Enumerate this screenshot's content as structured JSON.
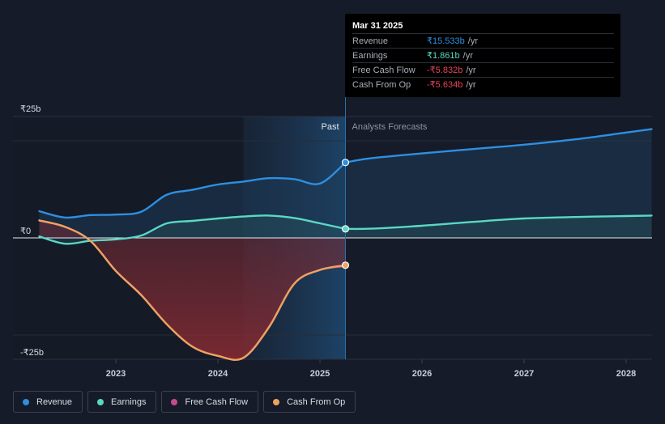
{
  "chart_data": {
    "type": "line",
    "currency_unit": "₹ billions",
    "y_ticks": [
      {
        "value": 25,
        "label": "₹25b"
      },
      {
        "value": 0,
        "label": "₹0"
      },
      {
        "value": -25,
        "label": "-₹25b"
      }
    ],
    "x_ticks": [
      {
        "value": 2023,
        "label": "2023"
      },
      {
        "value": 2024,
        "label": "2024"
      },
      {
        "value": 2025,
        "label": "2025"
      },
      {
        "value": 2026,
        "label": "2026"
      },
      {
        "value": 2027,
        "label": "2027"
      },
      {
        "value": 2028,
        "label": "2028"
      }
    ],
    "xlim": [
      2022.25,
      2028.25
    ],
    "ylim": [
      -25,
      25
    ],
    "past_label": "Past",
    "forecast_label": "Analysts Forecasts",
    "past_start": 2024.25,
    "past_end": 2025.25,
    "series": [
      {
        "name": "Revenue",
        "color": "#2e8fe0",
        "past": [
          [
            2022.25,
            5.5
          ],
          [
            2022.5,
            4.2
          ],
          [
            2022.75,
            4.7
          ],
          [
            2023.0,
            4.8
          ],
          [
            2023.25,
            5.4
          ],
          [
            2023.5,
            8.9
          ],
          [
            2023.75,
            9.9
          ],
          [
            2024.0,
            11.0
          ],
          [
            2024.25,
            11.6
          ],
          [
            2024.5,
            12.3
          ],
          [
            2024.75,
            12.1
          ],
          [
            2025.0,
            11.2
          ],
          [
            2025.25,
            15.533
          ]
        ],
        "forecast": [
          [
            2025.25,
            15.533
          ],
          [
            2025.5,
            16.4
          ],
          [
            2026.0,
            17.4
          ],
          [
            2026.5,
            18.3
          ],
          [
            2027.0,
            19.2
          ],
          [
            2027.5,
            20.3
          ],
          [
            2028.0,
            21.7
          ],
          [
            2028.25,
            22.4
          ]
        ]
      },
      {
        "name": "Earnings",
        "color": "#5ad8c4",
        "past": [
          [
            2022.25,
            0.3
          ],
          [
            2022.5,
            -1.2
          ],
          [
            2022.75,
            -0.6
          ],
          [
            2023.0,
            -0.3
          ],
          [
            2023.25,
            0.5
          ],
          [
            2023.5,
            3.0
          ],
          [
            2023.75,
            3.5
          ],
          [
            2024.0,
            4.0
          ],
          [
            2024.25,
            4.4
          ],
          [
            2024.5,
            4.6
          ],
          [
            2024.75,
            4.1
          ],
          [
            2025.0,
            3.0
          ],
          [
            2025.25,
            1.861
          ]
        ],
        "forecast": [
          [
            2025.25,
            1.861
          ],
          [
            2025.5,
            1.9
          ],
          [
            2026.0,
            2.5
          ],
          [
            2026.5,
            3.3
          ],
          [
            2027.0,
            4.0
          ],
          [
            2027.5,
            4.3
          ],
          [
            2028.0,
            4.5
          ],
          [
            2028.25,
            4.6
          ]
        ]
      },
      {
        "name": "Free Cash Flow",
        "color": "#c54b8f",
        "past": [
          [
            2022.25,
            3.6
          ],
          [
            2022.5,
            2.3
          ],
          [
            2022.75,
            -0.6
          ],
          [
            2023.0,
            -6.8
          ],
          [
            2023.25,
            -11.8
          ],
          [
            2023.5,
            -17.8
          ],
          [
            2023.75,
            -22.4
          ],
          [
            2024.0,
            -24.3
          ],
          [
            2024.25,
            -24.7
          ],
          [
            2024.5,
            -18.4
          ],
          [
            2024.75,
            -9.4
          ],
          [
            2025.0,
            -6.6
          ],
          [
            2025.25,
            -5.832
          ]
        ],
        "forecast": []
      },
      {
        "name": "Cash From Op",
        "color": "#eda35f",
        "past": [
          [
            2022.25,
            3.6
          ],
          [
            2022.5,
            2.3
          ],
          [
            2022.75,
            -0.6
          ],
          [
            2023.0,
            -6.8
          ],
          [
            2023.25,
            -11.8
          ],
          [
            2023.5,
            -17.8
          ],
          [
            2023.75,
            -22.4
          ],
          [
            2024.0,
            -24.3
          ],
          [
            2024.25,
            -24.7
          ],
          [
            2024.5,
            -18.4
          ],
          [
            2024.75,
            -9.4
          ],
          [
            2025.0,
            -6.6
          ],
          [
            2025.25,
            -5.634
          ]
        ],
        "forecast": []
      }
    ]
  },
  "tooltip": {
    "date": "Mar 31 2025",
    "rows": [
      {
        "name": "Revenue",
        "value": "₹15.533b",
        "unit": "/yr",
        "color": "#2e8fe0"
      },
      {
        "name": "Earnings",
        "value": "₹1.861b",
        "unit": "/yr",
        "color": "#5ad8c4"
      },
      {
        "name": "Free Cash Flow",
        "value": "-₹5.832b",
        "unit": "/yr",
        "color": "#e9445a"
      },
      {
        "name": "Cash From Op",
        "value": "-₹5.634b",
        "unit": "/yr",
        "color": "#e9445a"
      }
    ]
  },
  "legend": [
    {
      "label": "Revenue",
      "color": "#2e8fe0"
    },
    {
      "label": "Earnings",
      "color": "#5ad8c4"
    },
    {
      "label": "Free Cash Flow",
      "color": "#c54b8f"
    },
    {
      "label": "Cash From Op",
      "color": "#eda35f"
    }
  ]
}
